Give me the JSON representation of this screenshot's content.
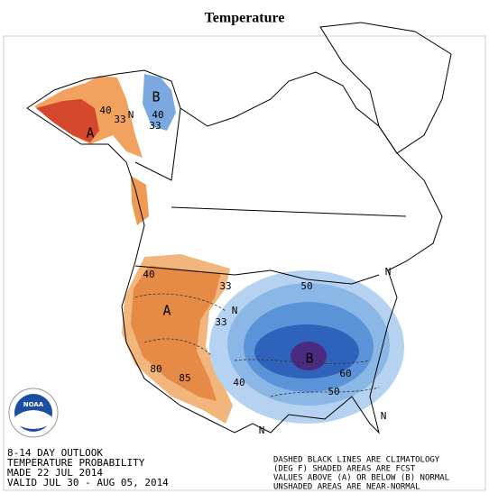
{
  "title": "Temperature",
  "outlook": [
    "8-14 DAY OUTLOOK",
    "TEMPERATURE PROBABILITY",
    "MADE  22 JUL 2014",
    "VALID  JUL 30 - AUG 05, 2014"
  ],
  "legend_note": [
    "DASHED BLACK LINES ARE CLIMATOLOGY",
    "(DEG F) SHADED AREAS ARE FCST",
    "VALUES ABOVE (A) OR BELOW (B) NORMAL",
    "UNSHADED AREAS ARE NEAR-NORMAL"
  ],
  "logo": "NOAA",
  "map_labels": [
    "A",
    "40",
    "33",
    "N",
    "B",
    "40",
    "33",
    "40",
    "A",
    "33",
    "N",
    "33",
    "80",
    "85",
    "40",
    "B",
    "60",
    "50",
    "N",
    "N",
    "N",
    "50"
  ]
}
